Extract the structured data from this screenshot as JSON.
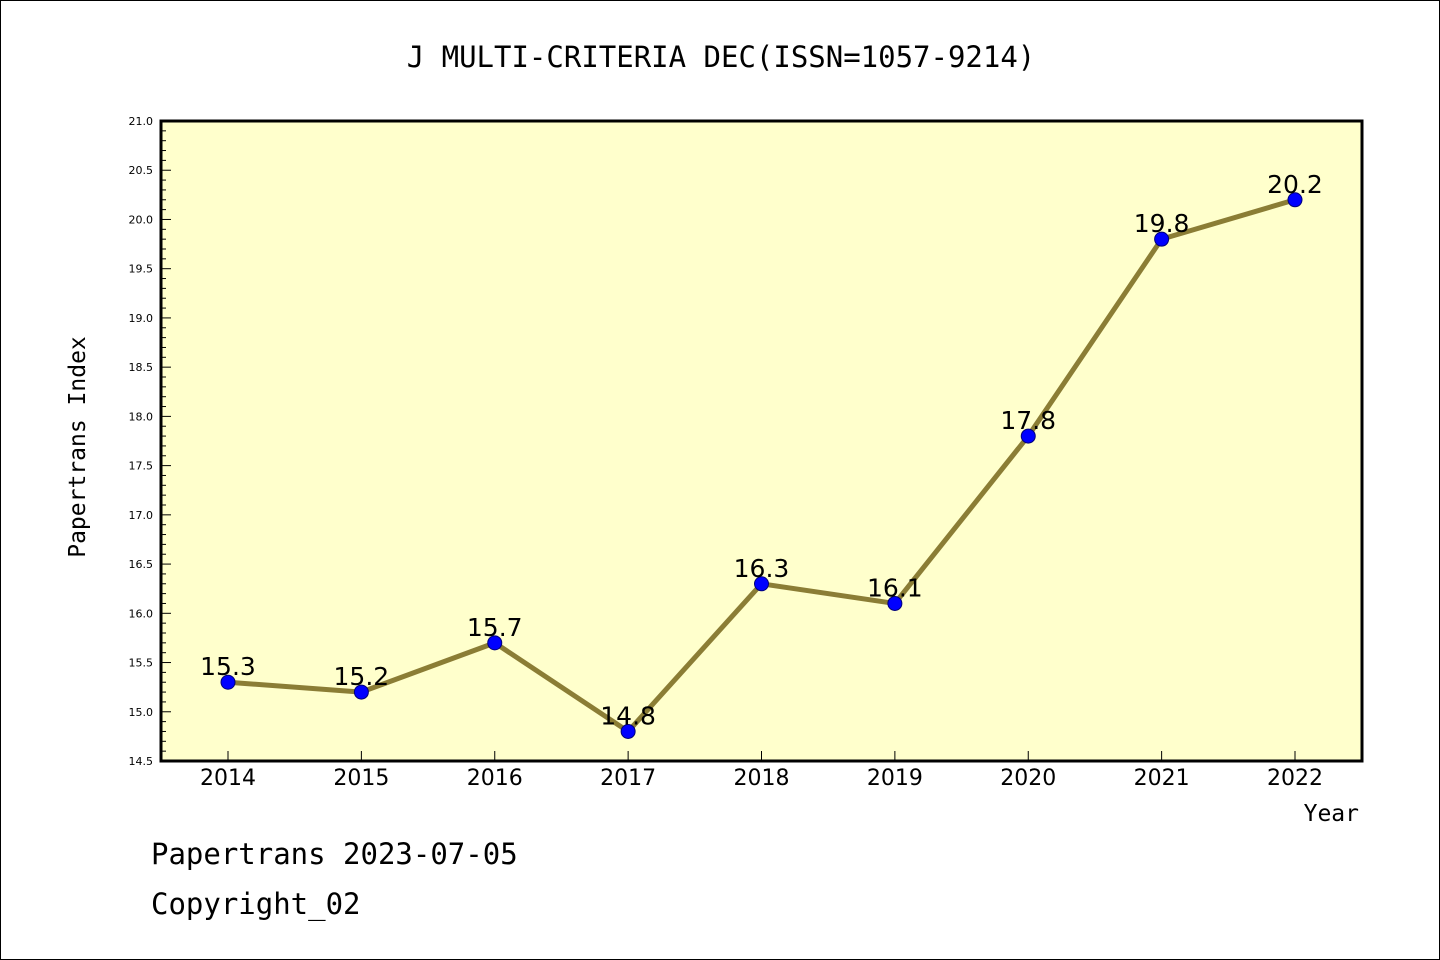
{
  "chart_data": {
    "type": "line",
    "title": "J MULTI-CRITERIA DEC(ISSN=1057-9214)",
    "xlabel": "Year",
    "ylabel": "Papertrans Index",
    "categories": [
      "2014",
      "2015",
      "2016",
      "2017",
      "2018",
      "2019",
      "2020",
      "2021",
      "2022"
    ],
    "series": [
      {
        "values": [
          15.3,
          15.2,
          15.7,
          14.8,
          16.3,
          16.1,
          17.8,
          19.8,
          20.2
        ],
        "data_labels": [
          "15.3",
          "15.2",
          "15.7",
          "14.8",
          "16.3",
          "16.1",
          "17.8",
          "19.8",
          "20.2"
        ]
      }
    ],
    "ylim": [
      14.5,
      21.0
    ],
    "yticks": [
      "14.5",
      "15.0",
      "15.5",
      "16.0",
      "16.5",
      "17.0",
      "17.5",
      "18.0",
      "18.5",
      "19.0",
      "19.5",
      "20.0",
      "20.5",
      "21.0"
    ],
    "grid": false,
    "colors": {
      "plot_background": "#ffffcc",
      "line": "#8b7d35",
      "marker": "#0000ff"
    }
  },
  "footer": {
    "line1": "Papertrans 2023-07-05",
    "line2": "Copyright_02"
  }
}
